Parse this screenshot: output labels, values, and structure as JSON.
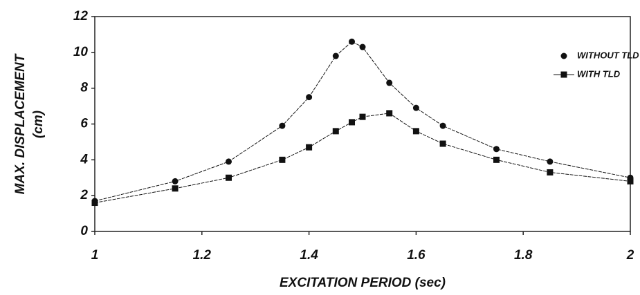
{
  "chart_data": {
    "type": "line",
    "xlabel": "EXCITATION PERIOD (sec)",
    "ylabel": [
      "MAX. DISPLACEMENT",
      "(cm)"
    ],
    "x": [
      1,
      1.15,
      1.25,
      1.35,
      1.4,
      1.45,
      1.48,
      1.5,
      1.55,
      1.6,
      1.65,
      1.75,
      1.85,
      2
    ],
    "series": [
      {
        "name": "WITHOUT TLD",
        "color": "#111111",
        "marker": "circle",
        "values": [
          1.7,
          2.8,
          3.9,
          5.9,
          7.5,
          9.8,
          10.6,
          10.3,
          8.3,
          6.9,
          5.9,
          4.6,
          3.9,
          3.0
        ]
      },
      {
        "name": "WITH TLD",
        "color": "#111111",
        "marker": "square",
        "values": [
          1.6,
          2.4,
          3.0,
          4.0,
          4.7,
          5.6,
          6.1,
          6.4,
          6.6,
          5.6,
          4.9,
          4.0,
          3.3,
          2.8
        ]
      }
    ],
    "xlim": [
      1,
      2
    ],
    "xticks": [
      1,
      1.2,
      1.4,
      1.6,
      1.8,
      2
    ],
    "ylim": [
      0,
      12
    ],
    "yticks": [
      0,
      2,
      4,
      6,
      8,
      10,
      12
    ],
    "grid": false,
    "legend": "upper right"
  }
}
